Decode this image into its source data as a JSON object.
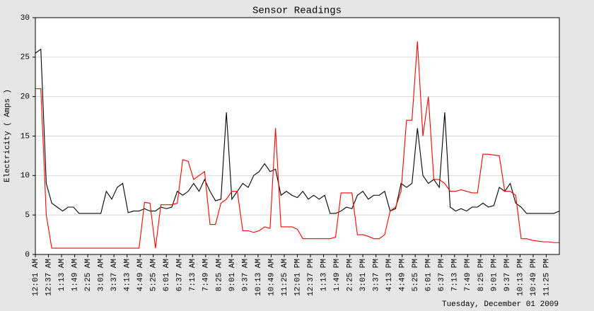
{
  "chart_data": {
    "type": "line",
    "title": "Sensor Readings",
    "y_label": "Electricity ( Amps )",
    "footer": "Tuesday, December 01 2009",
    "grid": true,
    "xlim": [
      1,
      1441
    ],
    "ylim": [
      0,
      30
    ],
    "yticks": [
      0,
      5,
      10,
      15,
      20,
      25,
      30
    ],
    "xticks": [
      {
        "value": 1,
        "label": "12:01 AM"
      },
      {
        "value": 37,
        "label": "12:37 AM"
      },
      {
        "value": 73,
        "label": "1:13 AM"
      },
      {
        "value": 109,
        "label": "1:49 AM"
      },
      {
        "value": 145,
        "label": "2:25 AM"
      },
      {
        "value": 181,
        "label": "3:01 AM"
      },
      {
        "value": 217,
        "label": "3:37 AM"
      },
      {
        "value": 253,
        "label": "4:13 AM"
      },
      {
        "value": 289,
        "label": "4:49 AM"
      },
      {
        "value": 325,
        "label": "5:25 AM"
      },
      {
        "value": 361,
        "label": "6:01 AM"
      },
      {
        "value": 397,
        "label": "6:37 AM"
      },
      {
        "value": 433,
        "label": "7:13 AM"
      },
      {
        "value": 469,
        "label": "7:49 AM"
      },
      {
        "value": 505,
        "label": "8:25 AM"
      },
      {
        "value": 541,
        "label": "9:01 AM"
      },
      {
        "value": 577,
        "label": "9:37 AM"
      },
      {
        "value": 613,
        "label": "10:13 AM"
      },
      {
        "value": 649,
        "label": "10:49 AM"
      },
      {
        "value": 685,
        "label": "11:25 AM"
      },
      {
        "value": 721,
        "label": "12:01 PM"
      },
      {
        "value": 757,
        "label": "12:37 PM"
      },
      {
        "value": 793,
        "label": "1:13 PM"
      },
      {
        "value": 829,
        "label": "1:49 PM"
      },
      {
        "value": 865,
        "label": "2:25 PM"
      },
      {
        "value": 901,
        "label": "3:01 PM"
      },
      {
        "value": 937,
        "label": "3:37 PM"
      },
      {
        "value": 973,
        "label": "4:13 PM"
      },
      {
        "value": 1009,
        "label": "4:49 PM"
      },
      {
        "value": 1045,
        "label": "5:25 PM"
      },
      {
        "value": 1081,
        "label": "6:01 PM"
      },
      {
        "value": 1117,
        "label": "6:37 PM"
      },
      {
        "value": 1153,
        "label": "7:13 PM"
      },
      {
        "value": 1189,
        "label": "7:49 PM"
      },
      {
        "value": 1225,
        "label": "8:25 PM"
      },
      {
        "value": 1261,
        "label": "9:01 PM"
      },
      {
        "value": 1297,
        "label": "9:37 PM"
      },
      {
        "value": 1333,
        "label": "10:13 PM"
      },
      {
        "value": 1369,
        "label": "10:49 PM"
      },
      {
        "value": 1405,
        "label": "11:25 PM"
      }
    ],
    "x": [
      1,
      16,
      31,
      46,
      61,
      76,
      91,
      106,
      121,
      136,
      151,
      166,
      181,
      196,
      211,
      226,
      241,
      256,
      271,
      286,
      301,
      316,
      331,
      346,
      361,
      376,
      391,
      406,
      421,
      436,
      451,
      466,
      481,
      496,
      511,
      526,
      541,
      556,
      571,
      586,
      601,
      616,
      631,
      646,
      661,
      676,
      691,
      706,
      721,
      736,
      751,
      766,
      781,
      796,
      811,
      826,
      841,
      856,
      871,
      886,
      901,
      916,
      931,
      946,
      961,
      976,
      991,
      1006,
      1021,
      1036,
      1051,
      1066,
      1081,
      1096,
      1111,
      1126,
      1141,
      1156,
      1171,
      1186,
      1201,
      1216,
      1231,
      1246,
      1261,
      1276,
      1291,
      1306,
      1321,
      1336,
      1351,
      1366,
      1381,
      1396,
      1411,
      1426,
      1441
    ],
    "series": [
      {
        "color": "#000000",
        "values": [
          25.5,
          26,
          9,
          6.5,
          6,
          5.5,
          6,
          6,
          5.2,
          5.2,
          5.2,
          5.2,
          5.2,
          8,
          7,
          8.5,
          9,
          5.3,
          5.5,
          5.5,
          5.8,
          5.5,
          5.5,
          6,
          5.8,
          6,
          8,
          7.5,
          8,
          9,
          8,
          9.5,
          8,
          6.8,
          7,
          18,
          7,
          8,
          9,
          8.5,
          10,
          10.5,
          11.5,
          10.5,
          10.8,
          7.5,
          8,
          7.5,
          7.2,
          8,
          7,
          7.5,
          7,
          7.5,
          5.2,
          5.2,
          5.5,
          6,
          5.8,
          7.5,
          8,
          7,
          7.5,
          7.5,
          8,
          5.5,
          5.8,
          9,
          8.5,
          9,
          16,
          10,
          9,
          9.5,
          8.5,
          18,
          6,
          5.5,
          5.8,
          5.5,
          6,
          6,
          6.5,
          6,
          6.2,
          8.5,
          8,
          9,
          6.5,
          6,
          5.2,
          5.2,
          5.2,
          5.2,
          5.2,
          5.2,
          5.5
        ]
      },
      {
        "color": "#ff0000",
        "values": [
          21,
          21,
          5,
          0.8,
          0.8,
          0.8,
          0.8,
          0.8,
          0.8,
          0.8,
          0.8,
          0.8,
          0.8,
          0.8,
          0.8,
          0.8,
          0.8,
          0.8,
          0.8,
          0.8,
          6.6,
          6.5,
          0.8,
          6.3,
          6.3,
          6.3,
          6.5,
          12,
          11.8,
          9.5,
          10,
          10.5,
          3.8,
          3.8,
          6.5,
          7,
          8,
          8,
          3,
          3,
          2.8,
          3,
          3.5,
          3.3,
          16,
          3.5,
          3.5,
          3.5,
          3.2,
          2,
          2,
          2,
          2,
          2,
          2,
          2.2,
          7.8,
          7.8,
          7.8,
          2.5,
          2.5,
          2.3,
          2,
          2,
          2.5,
          5.5,
          6,
          8,
          17,
          17,
          27,
          15,
          20,
          9.5,
          9.5,
          9,
          8,
          8,
          8.2,
          8,
          7.8,
          7.8,
          12.7,
          12.7,
          12.6,
          12.5,
          8,
          8,
          7.5,
          2,
          2,
          1.8,
          1.7,
          1.6,
          1.6,
          1.5,
          1.5
        ]
      }
    ]
  }
}
